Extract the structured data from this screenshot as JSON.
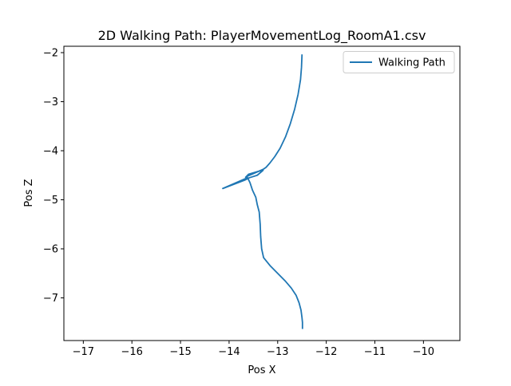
{
  "chart_data": {
    "type": "line",
    "title": "2D Walking Path: PlayerMovementLog_RoomA1.csv",
    "xlabel": "Pos X",
    "ylabel": "Pos Z",
    "xlim": [
      -17.4,
      -9.25
    ],
    "ylim": [
      -7.87,
      -1.87
    ],
    "xticks": [
      -17,
      -16,
      -15,
      -14,
      -13,
      -12,
      -11,
      -10
    ],
    "yticks": [
      -2,
      -3,
      -4,
      -5,
      -6,
      -7
    ],
    "xtick_labels": [
      "−17",
      "−16",
      "−15",
      "−14",
      "−13",
      "−12",
      "−11",
      "−10"
    ],
    "ytick_labels": [
      "−2",
      "−3",
      "−4",
      "−5",
      "−6",
      "−7"
    ],
    "grid": false,
    "legend": {
      "position": "upper right",
      "entries": [
        "Walking Path"
      ]
    },
    "series": [
      {
        "name": "Walking Path",
        "color": "#1f77b4",
        "x": [
          -12.5,
          -12.51,
          -12.53,
          -12.58,
          -12.65,
          -12.74,
          -12.84,
          -12.95,
          -13.06,
          -13.16,
          -13.24,
          -13.3,
          -13.58,
          -13.66,
          -13.6,
          -13.4,
          -13.3,
          -13.42,
          -13.58,
          -13.68,
          -14.13,
          -13.62,
          -13.57,
          -13.52,
          -13.45,
          -13.42,
          -13.38,
          -13.36,
          -13.35,
          -13.33,
          -13.29,
          -13.15,
          -13.0,
          -12.85,
          -12.72,
          -12.62,
          -12.56,
          -12.52,
          -12.5,
          -12.49,
          -12.49
        ],
        "y": [
          -2.05,
          -2.3,
          -2.55,
          -2.85,
          -3.15,
          -3.45,
          -3.72,
          -3.95,
          -4.12,
          -4.25,
          -4.34,
          -4.38,
          -4.5,
          -4.54,
          -4.48,
          -4.42,
          -4.4,
          -4.5,
          -4.55,
          -4.6,
          -4.77,
          -4.55,
          -4.65,
          -4.8,
          -4.95,
          -5.1,
          -5.25,
          -5.5,
          -5.75,
          -6.0,
          -6.18,
          -6.35,
          -6.5,
          -6.65,
          -6.8,
          -6.95,
          -7.1,
          -7.25,
          -7.4,
          -7.5,
          -7.62
        ]
      }
    ]
  }
}
